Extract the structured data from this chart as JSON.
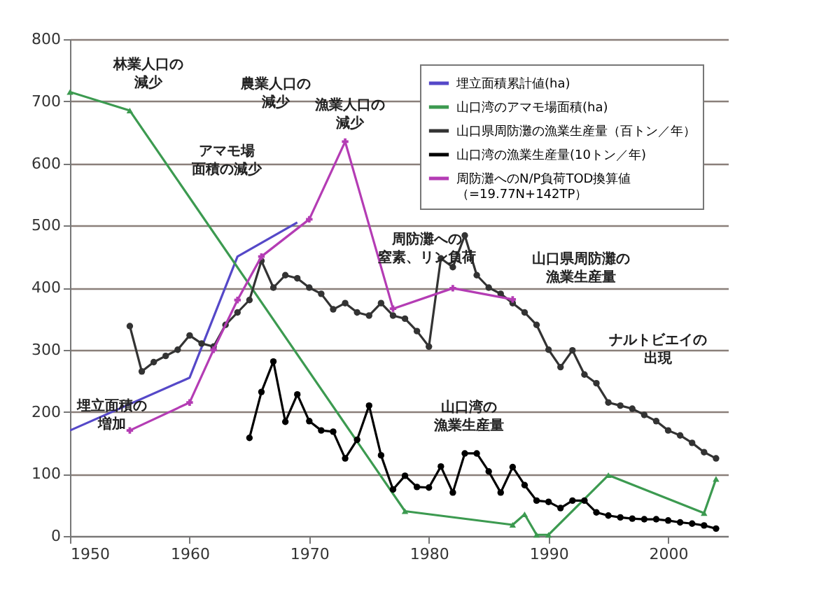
{
  "chart_data": {
    "type": "line",
    "xlim": [
      1950,
      2005
    ],
    "xticks": [
      1950,
      1960,
      1970,
      1980,
      1990,
      2000
    ],
    "ylim": [
      0,
      800
    ],
    "yticks": [
      0,
      100,
      200,
      300,
      400,
      500,
      600,
      700,
      800
    ],
    "grid": "y",
    "legend": "top right",
    "series": [
      {
        "name": "埋立面積累計値(ha)",
        "color": "#5548c8",
        "marker": "none",
        "x": [
          1950,
          1960,
          1964,
          1969
        ],
        "values": [
          170,
          255,
          450,
          505
        ]
      },
      {
        "name": "山口湾のアマモ場面積(ha)",
        "color": "#3c9a50",
        "marker": "triangle",
        "x": [
          1950,
          1955,
          1978,
          1987,
          1988,
          1989,
          1990,
          1995,
          2003,
          2004
        ],
        "values": [
          715,
          685,
          40,
          18,
          35,
          2,
          2,
          98,
          37,
          92
        ]
      },
      {
        "name": "山口県周防灘の漁業生産量（百トン／年）",
        "color": "#333333",
        "marker": "circle",
        "x": [
          1955,
          1956,
          1957,
          1958,
          1959,
          1960,
          1961,
          1962,
          1963,
          1964,
          1965,
          1966,
          1967,
          1968,
          1969,
          1970,
          1971,
          1972,
          1973,
          1974,
          1975,
          1976,
          1977,
          1978,
          1979,
          1980,
          1981,
          1982,
          1983,
          1984,
          1985,
          1986,
          1987,
          1988,
          1989,
          1990,
          1991,
          1992,
          1993,
          1994,
          1995,
          1996,
          1997,
          1998,
          1999,
          2000,
          2001,
          2002,
          2003,
          2004
        ],
        "values": [
          338,
          265,
          280,
          290,
          300,
          323,
          310,
          305,
          340,
          360,
          380,
          443,
          400,
          420,
          415,
          400,
          390,
          365,
          375,
          360,
          355,
          375,
          355,
          350,
          330,
          305,
          447,
          433,
          484,
          420,
          400,
          390,
          375,
          360,
          340,
          300,
          272,
          299,
          260,
          246,
          215,
          210,
          205,
          195,
          185,
          170,
          162,
          150,
          135,
          125
        ]
      },
      {
        "name": "山口湾の漁業生産量(10トン／年)",
        "color": "#000000",
        "marker": "circle",
        "x": [
          1965,
          1966,
          1967,
          1968,
          1969,
          1970,
          1971,
          1972,
          1973,
          1974,
          1975,
          1976,
          1977,
          1978,
          1979,
          1980,
          1981,
          1982,
          1983,
          1984,
          1985,
          1986,
          1987,
          1988,
          1989,
          1990,
          1991,
          1992,
          1993,
          1994,
          1995,
          1996,
          1997,
          1998,
          1999,
          2000,
          2001,
          2002,
          2003,
          2004
        ],
        "values": [
          158,
          232,
          281,
          184,
          228,
          185,
          170,
          168,
          125,
          155,
          210,
          130,
          75,
          97,
          79,
          78,
          112,
          70,
          133,
          133,
          104,
          70,
          111,
          82,
          57,
          55,
          45,
          57,
          57,
          38,
          33,
          30,
          28,
          27,
          27,
          25,
          22,
          20,
          17,
          12
        ]
      },
      {
        "name": "周防灘へのN/P負荷TOD換算値（=19.77N+142TP）",
        "color": "#b43cb4",
        "marker": "cross",
        "x": [
          1955,
          1960,
          1962,
          1964,
          1966,
          1970,
          1973,
          1977,
          1982,
          1987
        ],
        "values": [
          170,
          215,
          300,
          380,
          450,
          510,
          635,
          366,
          399,
          381
        ]
      }
    ],
    "annotations": [
      "林業人口の減少",
      "農業人口の減少",
      "漁業人口の減少",
      "アマモ場面積の減少",
      "周防灘への窒素、リン負荷",
      "山口県周防灘の漁業生産量",
      "山口湾の漁業生産量",
      "ナルトビエイの出現",
      "埋立面積の増加"
    ]
  }
}
